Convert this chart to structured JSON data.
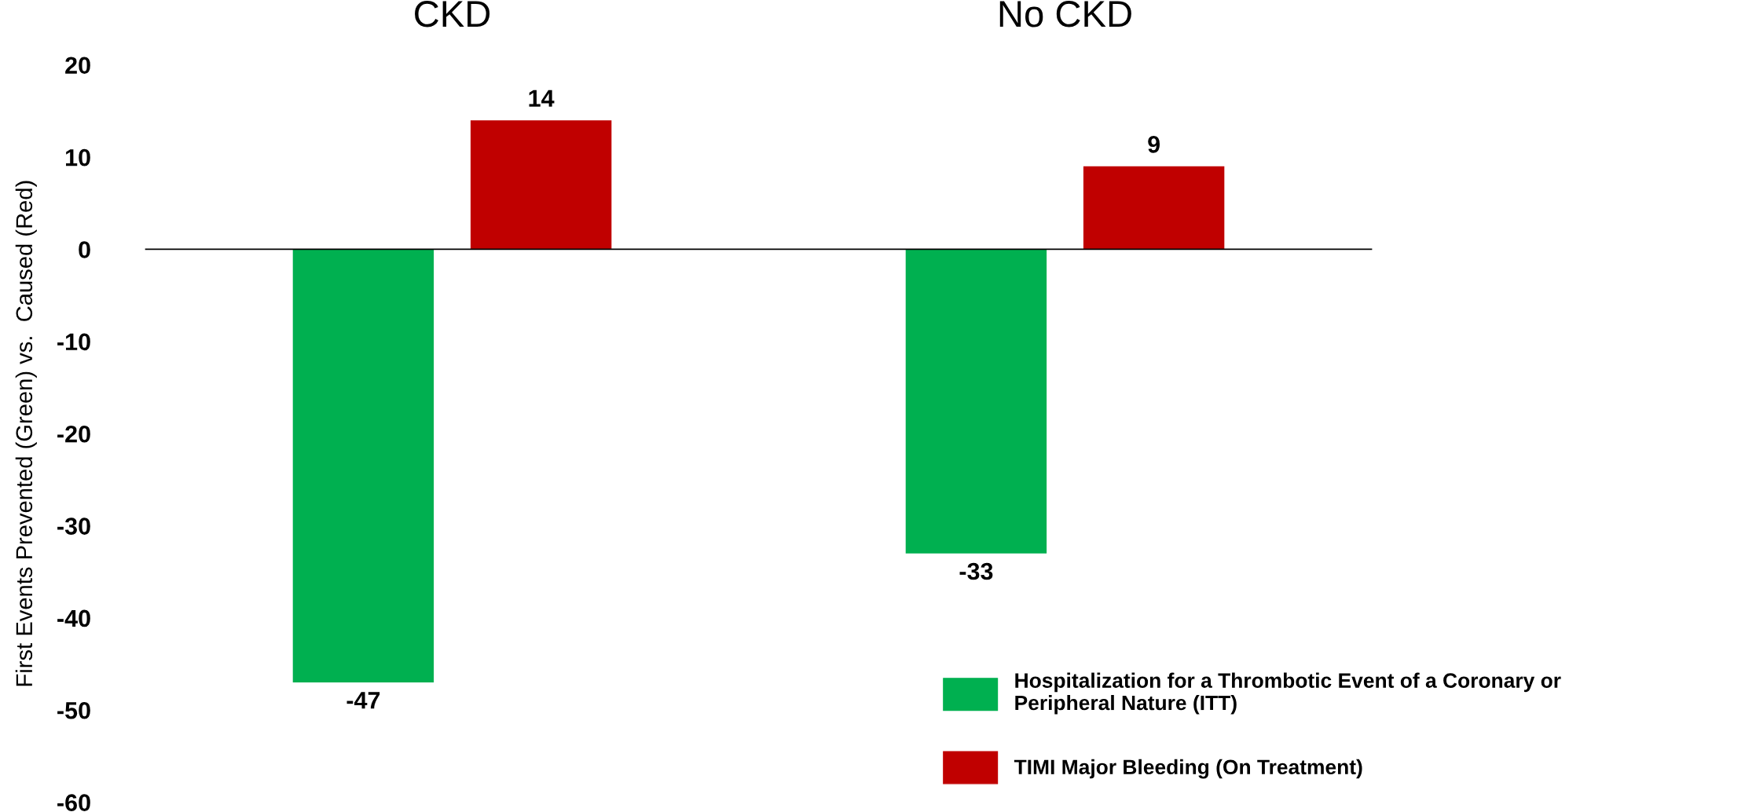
{
  "chart_data": {
    "type": "bar",
    "ylabel": "First Events Prevented (Green) vs.  Caused (Red)",
    "categories": [
      "CKD",
      "No CKD"
    ],
    "series": [
      {
        "name": "Hospitalization for a Thrombotic Event of a Coronary or\nPeripheral Nature (ITT)",
        "color": "#00b050",
        "values": [
          -47,
          -33
        ]
      },
      {
        "name": "TIMI Major Bleeding (On Treatment)",
        "color": "#c00000",
        "values": [
          14,
          9
        ]
      }
    ],
    "ylim": [
      -60,
      20
    ],
    "yticks": [
      {
        "value": -60,
        "label": "-60"
      },
      {
        "value": -50,
        "label": "-50"
      },
      {
        "value": -40,
        "label": "-40"
      },
      {
        "value": -30,
        "label": "-30"
      },
      {
        "value": -20,
        "label": "-20"
      },
      {
        "value": -10,
        "label": "-10"
      },
      0,
      10,
      20
    ],
    "data_labels": true,
    "legend": "bottom right"
  }
}
